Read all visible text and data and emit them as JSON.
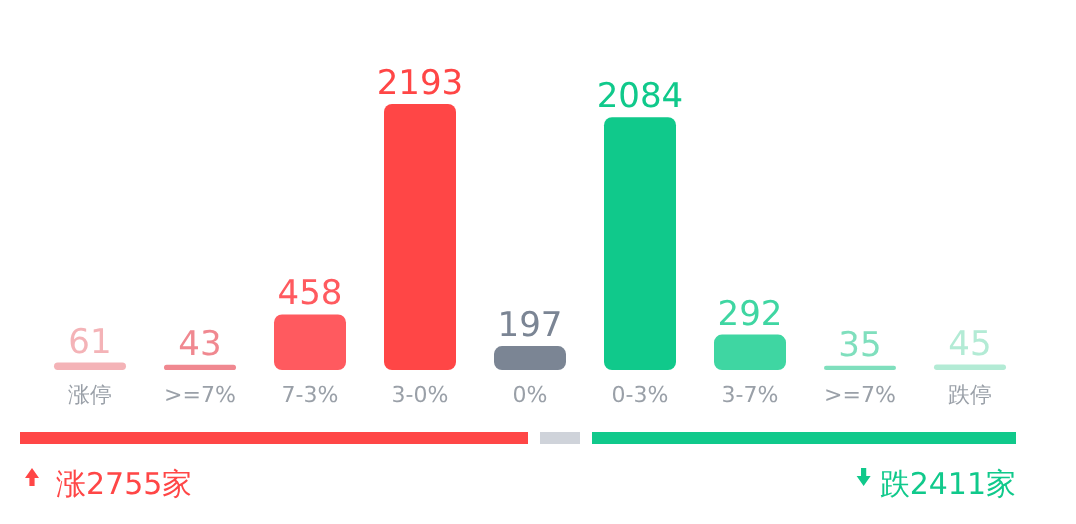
{
  "chart_data": {
    "type": "bar",
    "categories": [
      "涨停",
      ">=7%",
      "7-3%",
      "3-0%",
      "0%",
      "0-3%",
      "3-7%",
      ">=7%",
      "跌停"
    ],
    "values": [
      61,
      43,
      458,
      2193,
      197,
      2084,
      292,
      35,
      45
    ],
    "colors": [
      "#f4b3b7",
      "#f08890",
      "#ff5a5f",
      "#ff4646",
      "#7b8594",
      "#10c98b",
      "#3fd6a2",
      "#7fdfbd",
      "#b3ebd5"
    ],
    "data_labels": true,
    "annotations": [
      "涨2755家",
      "跌2411家"
    ]
  }
}
